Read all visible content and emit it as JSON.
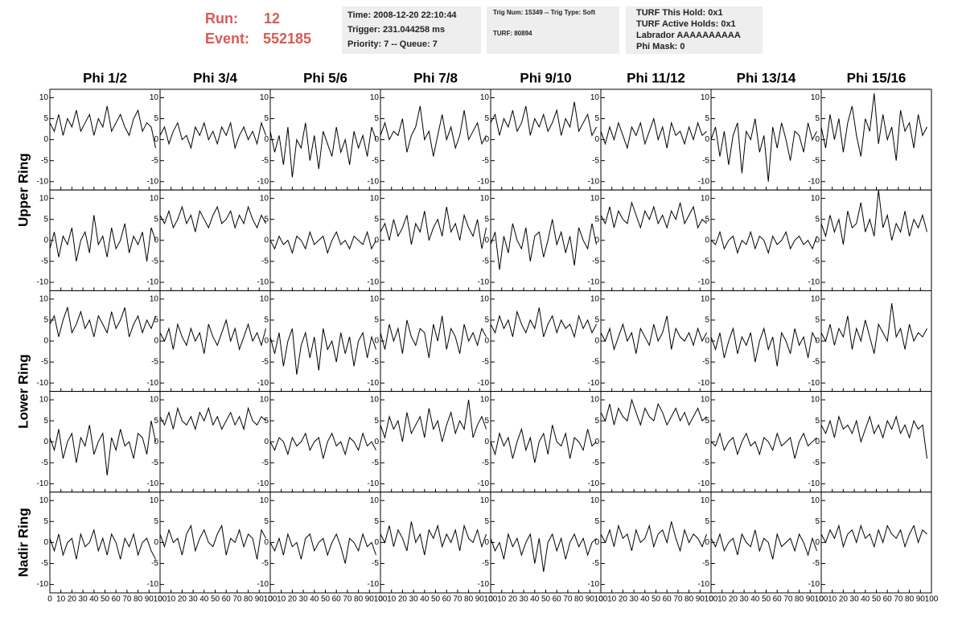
{
  "header": {
    "run": {
      "label": "Run:",
      "value": 12
    },
    "event": {
      "label": "Event:",
      "value": 552185
    },
    "box1": [
      "Time: 2008-12-20 22:10:44",
      "Trigger: 231.044258 ms",
      "Priority: 7 -- Queue: 7"
    ],
    "box2": [
      "Trig Num: 15349 -- Trig Type: Soft",
      "TURF: 80894"
    ],
    "box3": [
      "TURF This Hold: 0x1",
      "TURF Active Holds: 0x1",
      "Labrador AAAAAAAAAA",
      "Phi Mask: 0"
    ]
  },
  "chart_data": {
    "type": "line",
    "columns": [
      "Phi 1/2",
      "Phi 3/4",
      "Phi 5/6",
      "Phi 7/8",
      "Phi 9/10",
      "Phi 11/12",
      "Phi 13/14",
      "Phi 15/16"
    ],
    "row_labels": [
      "Upper Ring",
      "Lower Ring",
      "Nadir Ring"
    ],
    "xlim": [
      0,
      100
    ],
    "xticks": [
      0,
      10,
      20,
      30,
      40,
      50,
      60,
      70,
      80,
      90,
      100
    ],
    "ylim": [
      -12,
      12
    ],
    "yticks": [
      -10,
      -5,
      0,
      5,
      10
    ],
    "color": "#000000",
    "x": [
      0,
      4,
      8,
      12,
      16,
      20,
      24,
      28,
      32,
      36,
      40,
      44,
      48,
      52,
      56,
      60,
      64,
      68,
      72,
      76,
      80,
      84,
      88,
      92,
      96
    ],
    "series": [
      {
        "values": [
          4,
          2,
          6,
          1,
          5,
          3,
          7,
          2,
          4,
          6,
          1,
          5,
          3,
          8,
          2,
          4,
          6,
          3,
          1,
          5,
          7,
          2,
          4,
          3,
          -2
        ]
      },
      {
        "values": [
          1,
          3,
          -1,
          2,
          4,
          0,
          1,
          -2,
          3,
          1,
          4,
          0,
          2,
          -1,
          3,
          1,
          4,
          -2,
          1,
          3,
          0,
          2,
          -1,
          4,
          1
        ]
      },
      {
        "values": [
          2,
          -3,
          1,
          -6,
          3,
          -9,
          0,
          -2,
          4,
          -5,
          1,
          -7,
          2,
          -1,
          -4,
          3,
          -3,
          0,
          -6,
          2,
          -2,
          1,
          -4,
          3,
          0
        ]
      },
      {
        "values": [
          1,
          4,
          0,
          2,
          1,
          5,
          -3,
          1,
          3,
          8,
          0,
          2,
          -4,
          1,
          6,
          0,
          3,
          -2,
          1,
          7,
          0,
          2,
          4,
          -1,
          1
        ]
      },
      {
        "values": [
          4,
          6,
          1,
          5,
          3,
          7,
          2,
          4,
          8,
          1,
          5,
          3,
          6,
          2,
          4,
          7,
          1,
          5,
          3,
          9,
          2,
          4,
          6,
          1,
          3
        ]
      },
      {
        "values": [
          2,
          -1,
          3,
          0,
          4,
          1,
          -2,
          3,
          1,
          4,
          -1,
          2,
          5,
          0,
          3,
          -2,
          4,
          1,
          2,
          -1,
          3,
          0,
          4,
          1,
          2
        ]
      },
      {
        "values": [
          0,
          3,
          -4,
          2,
          -6,
          1,
          4,
          -8,
          2,
          0,
          5,
          -3,
          1,
          -10,
          3,
          -2,
          4,
          0,
          -5,
          2,
          1,
          -3,
          4,
          0,
          2
        ]
      },
      {
        "values": [
          3,
          -2,
          6,
          0,
          5,
          -3,
          4,
          8,
          1,
          -4,
          5,
          2,
          11,
          -1,
          6,
          0,
          3,
          -5,
          7,
          2,
          4,
          -2,
          6,
          1,
          3
        ]
      },
      {
        "values": [
          -2,
          2,
          -4,
          1,
          -1,
          3,
          -5,
          0,
          2,
          -3,
          6,
          -1,
          1,
          -4,
          3,
          -2,
          0,
          4,
          -3,
          1,
          -1,
          2,
          -5,
          3,
          0
        ]
      },
      {
        "values": [
          6,
          4,
          7,
          3,
          5,
          8,
          4,
          6,
          2,
          7,
          5,
          3,
          6,
          8,
          4,
          5,
          7,
          3,
          6,
          4,
          8,
          5,
          3,
          6,
          4
        ]
      },
      {
        "values": [
          0,
          -2,
          1,
          -1,
          0,
          -3,
          1,
          0,
          -2,
          2,
          -1,
          0,
          1,
          -3,
          0,
          2,
          -1,
          0,
          -2,
          1,
          0,
          -1,
          2,
          -2,
          0
        ]
      },
      {
        "values": [
          2,
          4,
          0,
          5,
          1,
          3,
          6,
          -1,
          4,
          2,
          7,
          0,
          3,
          5,
          1,
          8,
          2,
          4,
          0,
          6,
          3,
          1,
          5,
          -2,
          3
        ]
      },
      {
        "values": [
          -1,
          2,
          -7,
          1,
          -3,
          4,
          0,
          -2,
          3,
          -5,
          1,
          2,
          -4,
          0,
          5,
          -1,
          2,
          -3,
          1,
          -6,
          3,
          0,
          -2,
          4,
          -1
        ]
      },
      {
        "values": [
          6,
          4,
          8,
          3,
          7,
          5,
          4,
          9,
          6,
          3,
          7,
          5,
          8,
          4,
          6,
          3,
          7,
          5,
          9,
          4,
          6,
          8,
          3,
          5,
          4
        ]
      },
      {
        "values": [
          0,
          -1,
          2,
          -2,
          0,
          1,
          -3,
          0,
          -1,
          2,
          -2,
          1,
          0,
          -3,
          1,
          -1,
          0,
          2,
          -2,
          0,
          1,
          -1,
          0,
          -2,
          1
        ]
      },
      {
        "values": [
          4,
          1,
          6,
          2,
          5,
          -1,
          7,
          3,
          4,
          9,
          2,
          5,
          1,
          12,
          3,
          6,
          0,
          4,
          2,
          7,
          1,
          5,
          3,
          6,
          2
        ]
      },
      {
        "values": [
          4,
          6,
          1,
          5,
          8,
          2,
          4,
          7,
          3,
          5,
          1,
          6,
          4,
          2,
          7,
          3,
          5,
          8,
          1,
          4,
          6,
          2,
          5,
          3,
          6
        ]
      },
      {
        "values": [
          2,
          0,
          3,
          -2,
          4,
          1,
          -1,
          3,
          0,
          2,
          -3,
          4,
          1,
          -1,
          2,
          5,
          0,
          3,
          -2,
          1,
          4,
          0,
          2,
          -1,
          3
        ]
      },
      {
        "values": [
          1,
          -3,
          2,
          -6,
          0,
          3,
          -8,
          -1,
          2,
          -4,
          1,
          -7,
          3,
          -2,
          0,
          -5,
          2,
          -3,
          1,
          -6,
          0,
          2,
          -4,
          1,
          -2
        ]
      },
      {
        "values": [
          2,
          -2,
          4,
          0,
          3,
          -3,
          5,
          1,
          -1,
          3,
          2,
          -4,
          4,
          0,
          6,
          -2,
          3,
          1,
          -3,
          4,
          0,
          2,
          -1,
          3,
          1
        ]
      },
      {
        "values": [
          4,
          2,
          6,
          3,
          5,
          1,
          7,
          4,
          2,
          5,
          3,
          8,
          1,
          4,
          6,
          2,
          5,
          3,
          4,
          1,
          6,
          3,
          5,
          2,
          4
        ]
      },
      {
        "values": [
          2,
          0,
          3,
          -2,
          1,
          4,
          0,
          2,
          -3,
          3,
          1,
          -1,
          4,
          0,
          2,
          6,
          -2,
          3,
          1,
          0,
          2,
          -1,
          3,
          0,
          2
        ]
      },
      {
        "values": [
          1,
          -2,
          2,
          -4,
          0,
          3,
          -3,
          1,
          -1,
          2,
          -5,
          0,
          3,
          -2,
          1,
          -6,
          2,
          0,
          -3,
          3,
          -1,
          1,
          -4,
          2,
          0
        ]
      },
      {
        "values": [
          2,
          0,
          4,
          -1,
          3,
          1,
          6,
          -2,
          3,
          0,
          5,
          1,
          -3,
          4,
          2,
          0,
          9,
          1,
          3,
          -2,
          4,
          0,
          2,
          1,
          3
        ]
      },
      {
        "values": [
          1,
          -2,
          3,
          -4,
          0,
          2,
          -5,
          1,
          -1,
          4,
          -3,
          0,
          2,
          -8,
          1,
          -2,
          3,
          -1,
          0,
          -4,
          2,
          1,
          -3,
          5,
          0
        ]
      },
      {
        "values": [
          6,
          4,
          7,
          3,
          8,
          5,
          4,
          6,
          3,
          7,
          5,
          8,
          4,
          6,
          3,
          5,
          7,
          4,
          6,
          3,
          8,
          5,
          4,
          6,
          5
        ]
      },
      {
        "values": [
          0,
          -2,
          1,
          0,
          -3,
          1,
          -1,
          0,
          2,
          -2,
          0,
          1,
          -4,
          0,
          2,
          -1,
          0,
          -3,
          1,
          0,
          -2,
          2,
          -1,
          0,
          -2
        ]
      },
      {
        "values": [
          4,
          1,
          6,
          3,
          5,
          0,
          7,
          2,
          4,
          6,
          1,
          8,
          3,
          5,
          0,
          4,
          7,
          2,
          5,
          3,
          10,
          1,
          4,
          6,
          3
        ]
      },
      {
        "values": [
          0,
          -3,
          2,
          -1,
          1,
          -4,
          0,
          3,
          -2,
          1,
          -5,
          0,
          2,
          -3,
          4,
          0,
          -1,
          2,
          -4,
          1,
          0,
          -2,
          3,
          -1,
          0
        ]
      },
      {
        "values": [
          7,
          5,
          9,
          4,
          8,
          6,
          5,
          10,
          7,
          4,
          8,
          6,
          5,
          9,
          7,
          4,
          6,
          8,
          5,
          7,
          4,
          6,
          8,
          5,
          6
        ]
      },
      {
        "values": [
          0,
          -1,
          2,
          -2,
          0,
          1,
          -3,
          0,
          2,
          -1,
          0,
          -3,
          1,
          0,
          -2,
          2,
          -1,
          0,
          1,
          -4,
          0,
          2,
          -1,
          0,
          1
        ]
      },
      {
        "values": [
          4,
          2,
          5,
          1,
          6,
          3,
          4,
          2,
          5,
          0,
          3,
          6,
          2,
          4,
          1,
          5,
          3,
          6,
          2,
          4,
          1,
          5,
          3,
          4,
          -4
        ]
      },
      {
        "values": [
          1,
          -2,
          2,
          -3,
          0,
          1,
          -4,
          2,
          -1,
          0,
          3,
          -2,
          1,
          -3,
          2,
          0,
          -4,
          1,
          -1,
          2,
          -3,
          0,
          1,
          -2,
          -4
        ]
      },
      {
        "values": [
          2,
          -1,
          3,
          0,
          1,
          -3,
          2,
          4,
          -2,
          1,
          3,
          0,
          -1,
          2,
          4,
          -3,
          1,
          0,
          3,
          -1,
          2,
          1,
          -4,
          3,
          1
        ]
      },
      {
        "values": [
          0,
          -2,
          1,
          -3,
          2,
          -1,
          0,
          -4,
          1,
          2,
          -2,
          0,
          1,
          -3,
          0,
          2,
          -1,
          -5,
          1,
          0,
          -2,
          2,
          -1,
          0,
          -3
        ]
      },
      {
        "values": [
          2,
          0,
          4,
          -1,
          3,
          1,
          -2,
          5,
          0,
          2,
          -3,
          3,
          1,
          4,
          -1,
          2,
          0,
          3,
          -2,
          4,
          1,
          0,
          3,
          -1,
          2
        ]
      },
      {
        "values": [
          1,
          -2,
          0,
          -4,
          2,
          -1,
          1,
          -3,
          0,
          2,
          -5,
          1,
          -7,
          0,
          2,
          -2,
          1,
          -4,
          0,
          2,
          -1,
          1,
          -3,
          0,
          1
        ]
      },
      {
        "values": [
          2,
          0,
          3,
          -1,
          4,
          1,
          2,
          -2,
          3,
          0,
          1,
          4,
          -1,
          2,
          3,
          0,
          5,
          1,
          -2,
          3,
          0,
          2,
          1,
          -1,
          2
        ]
      },
      {
        "values": [
          1,
          -1,
          2,
          -2,
          0,
          1,
          -3,
          2,
          0,
          -1,
          3,
          -2,
          1,
          0,
          -4,
          2,
          -1,
          0,
          1,
          -2,
          2,
          0,
          -3,
          1,
          -2
        ]
      },
      {
        "values": [
          2,
          0,
          3,
          1,
          4,
          -1,
          2,
          3,
          0,
          4,
          1,
          2,
          -1,
          3,
          0,
          4,
          2,
          1,
          3,
          -1,
          2,
          4,
          0,
          3,
          2
        ]
      }
    ]
  }
}
